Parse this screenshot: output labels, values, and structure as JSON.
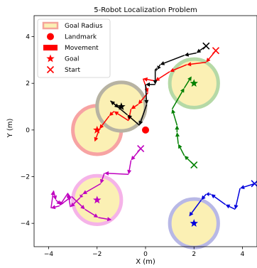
{
  "chart_data": {
    "type": "line",
    "title": "5-Robot Localization Problem",
    "xlabel": "X (m)",
    "ylabel": "Y (m)",
    "xlim": [
      -4.6,
      4.6
    ],
    "ylim": [
      -5.0,
      4.9
    ],
    "xticks": [
      -4,
      -2,
      0,
      2,
      4
    ],
    "yticks": [
      -4,
      -2,
      0,
      2,
      4
    ],
    "xtick_labels": [
      "−4",
      "−2",
      "0",
      "2",
      "4"
    ],
    "ytick_labels": [
      "−4",
      "−2",
      "0",
      "2",
      "4"
    ],
    "grid": false,
    "legend_position": "top-left",
    "legend": [
      {
        "label": "Goal Radius",
        "symbol": "patch",
        "color": "#f4a49a"
      },
      {
        "label": "Landmark",
        "symbol": "circle",
        "color": "#ff0000"
      },
      {
        "label": "Movement",
        "symbol": "bar",
        "color": "#ff0000"
      },
      {
        "label": "Goal",
        "symbol": "star",
        "color": "#ff0000"
      },
      {
        "label": "Start",
        "symbol": "x",
        "color": "#ff0000"
      }
    ],
    "landmark": {
      "x": 0,
      "y": 0,
      "color": "#ff0000"
    },
    "goal_radius": 1.0,
    "goal_fill": "#fbf0b4",
    "series": [
      {
        "color": "#ff0000",
        "ring_color": "#f7a3a3",
        "goal": [
          -2,
          0
        ],
        "start": [
          2.9,
          3.4
        ],
        "path": [
          [
            2.9,
            3.4
          ],
          [
            2.5,
            2.9
          ],
          [
            1.7,
            2.8
          ],
          [
            1.0,
            2.5
          ],
          [
            0.4,
            2.1
          ],
          [
            -0.1,
            2.2
          ],
          [
            0.1,
            1.6
          ],
          [
            -0.3,
            1.1
          ],
          [
            -0.6,
            0.9
          ],
          [
            -0.7,
            0.4
          ],
          [
            -1.3,
            0.8
          ],
          [
            -1.5,
            0.6
          ],
          [
            -1.9,
            0.05
          ],
          [
            -2.1,
            -0.5
          ]
        ]
      },
      {
        "color": "#000000",
        "ring_color": "#b7b3a3",
        "goal": [
          -1,
          1
        ],
        "start": [
          2.5,
          3.6
        ],
        "path": [
          [
            2.5,
            3.6
          ],
          [
            2.1,
            3.3
          ],
          [
            1.6,
            3.2
          ],
          [
            0.6,
            2.8
          ],
          [
            0.5,
            2.6
          ],
          [
            0.4,
            2.6
          ],
          [
            0.4,
            1.95
          ],
          [
            0.0,
            1.95
          ],
          [
            0.05,
            1.1
          ],
          [
            -0.25,
            0.2
          ],
          [
            -0.75,
            0.65
          ],
          [
            -1.45,
            1.25
          ],
          [
            -1.1,
            0.95
          ],
          [
            -0.95,
            1.05
          ]
        ]
      },
      {
        "color": "#008000",
        "ring_color": "#b5d9a6",
        "goal": [
          2,
          2
        ],
        "start": [
          2,
          -1.5
        ],
        "path": [
          [
            2,
            -1.5
          ],
          [
            1.6,
            -1.1
          ],
          [
            1.35,
            -0.6
          ],
          [
            1.3,
            -0.1
          ],
          [
            1.3,
            0.2
          ],
          [
            1.1,
            0.9
          ],
          [
            1.6,
            1.8
          ],
          [
            1.9,
            2.3
          ]
        ]
      },
      {
        "color": "#bf00bf",
        "ring_color": "#f5b3e8",
        "goal": [
          -2,
          -3
        ],
        "start": [
          -0.2,
          -0.8
        ],
        "path": [
          [
            -0.2,
            -0.8
          ],
          [
            -0.6,
            -1.3
          ],
          [
            -0.7,
            -1.9
          ],
          [
            -1.7,
            -1.85
          ],
          [
            -1.85,
            -2.3
          ],
          [
            -2.6,
            -2.75
          ],
          [
            -2.7,
            -2.9
          ],
          [
            -3.1,
            -3.3
          ],
          [
            -3.2,
            -2.7
          ],
          [
            -3.55,
            -3.25
          ],
          [
            -3.9,
            -3.35
          ],
          [
            -3.8,
            -2.6
          ],
          [
            -3.7,
            -3.0
          ],
          [
            -3.5,
            -3.2
          ],
          [
            -3.05,
            -2.85
          ],
          [
            -2.5,
            -3.4
          ],
          [
            -1.95,
            -3.75
          ],
          [
            -1.4,
            -3.85
          ]
        ]
      },
      {
        "color": "#0000dd",
        "ring_color": "#b8b8e6",
        "goal": [
          2,
          -4
        ],
        "start": [
          4.5,
          -2.3
        ],
        "path": [
          [
            4.5,
            -2.3
          ],
          [
            3.9,
            -2.5
          ],
          [
            3.7,
            -3.4
          ],
          [
            3.3,
            -3.2
          ],
          [
            2.7,
            -2.75
          ],
          [
            2.5,
            -2.75
          ],
          [
            2.3,
            -3.0
          ],
          [
            1.8,
            -3.7
          ]
        ]
      }
    ]
  }
}
